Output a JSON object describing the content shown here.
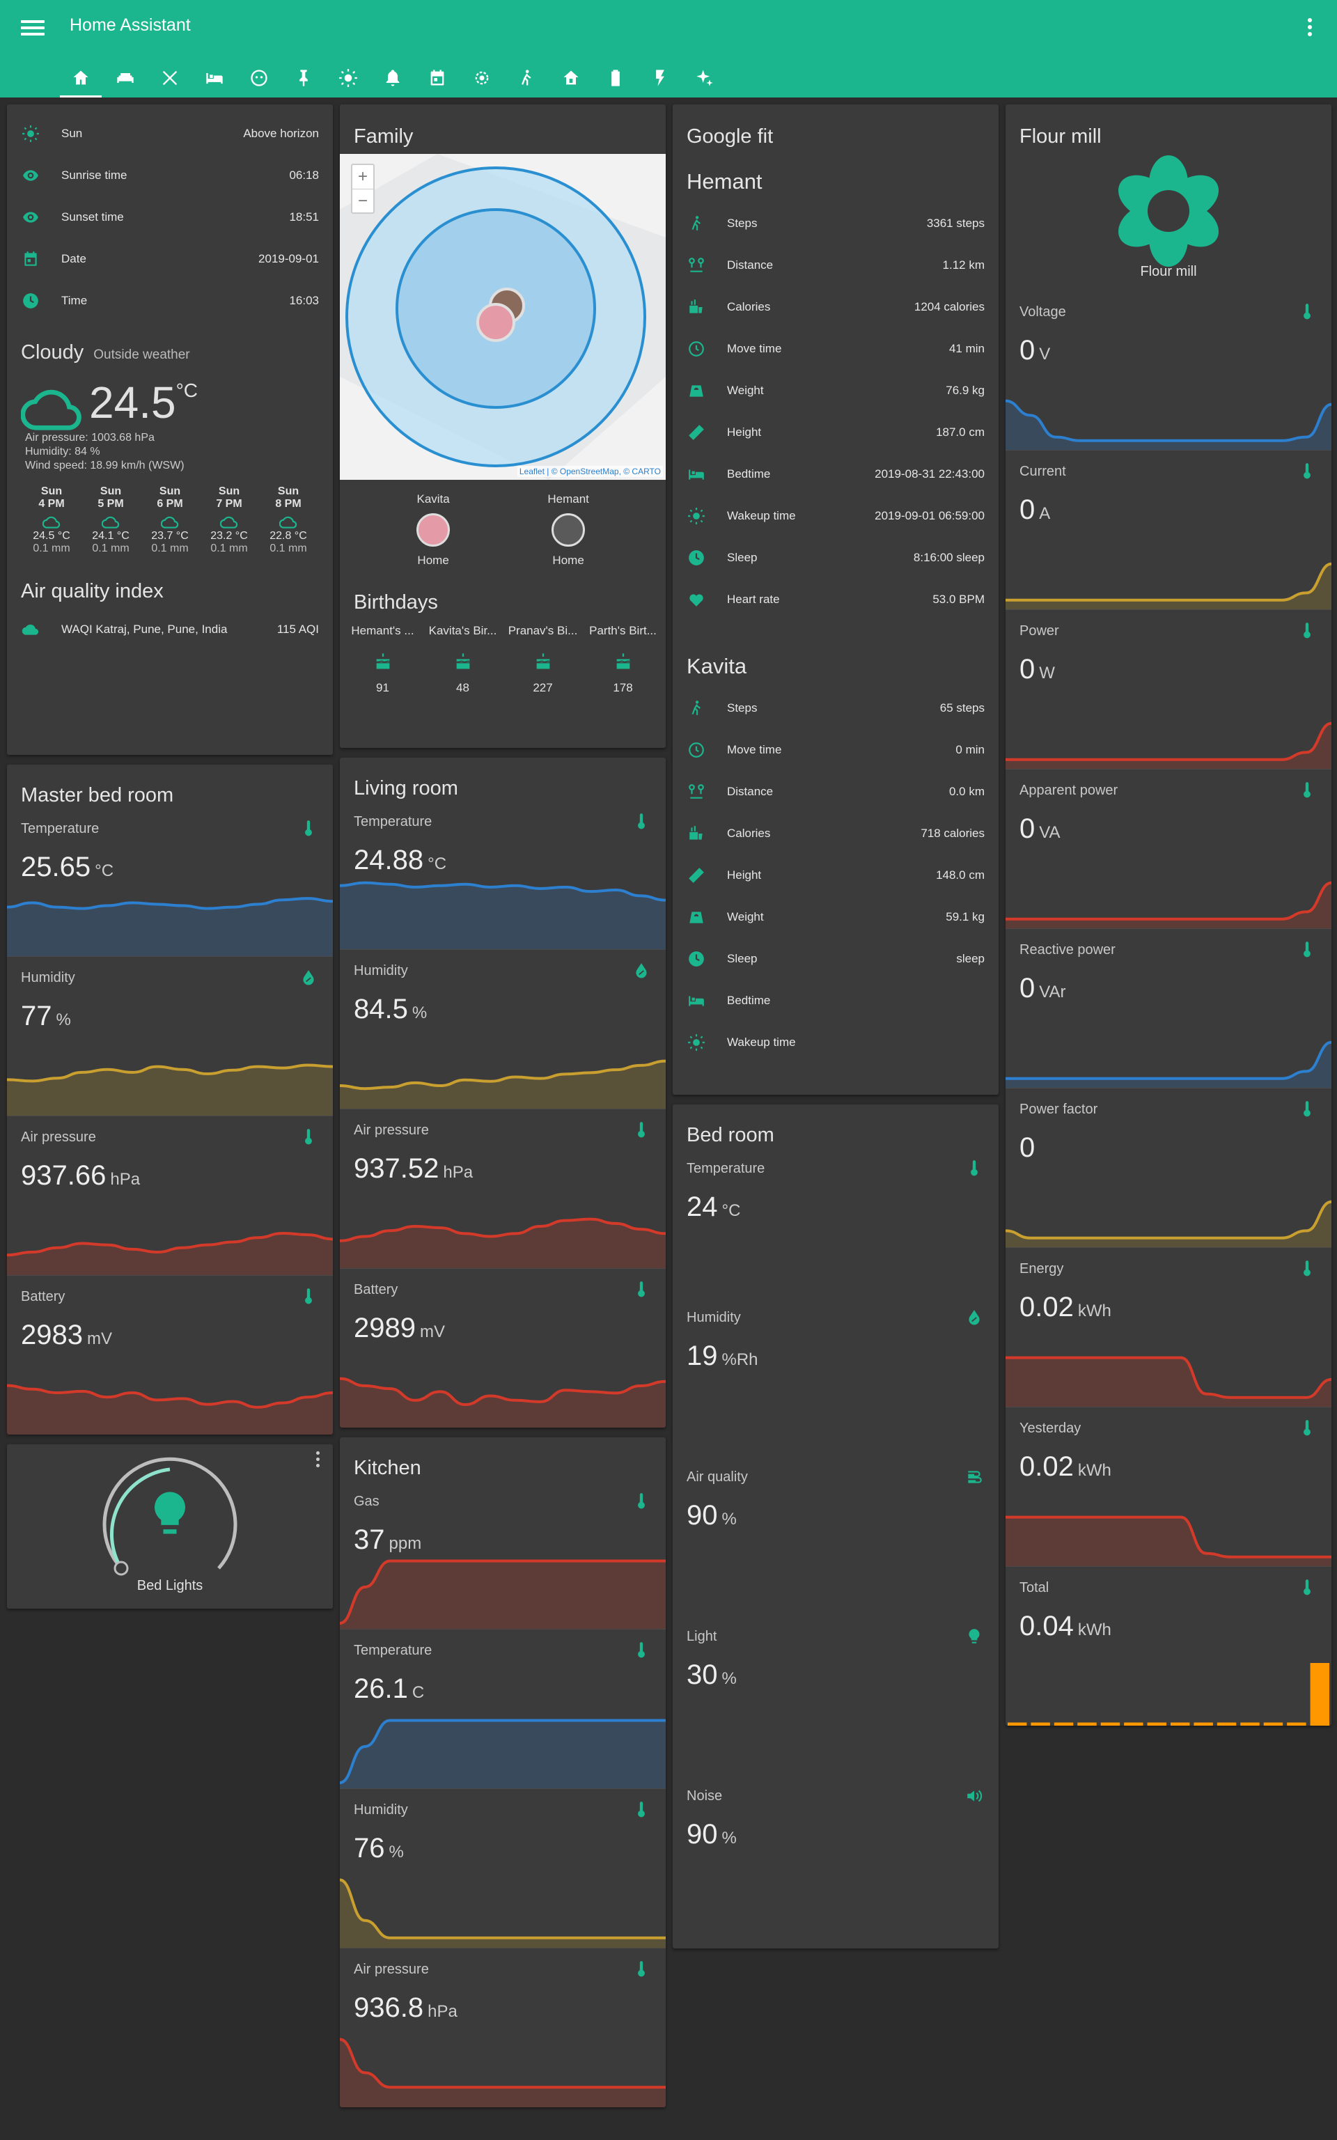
{
  "app": {
    "title": "Home Assistant"
  },
  "colors": {
    "primary": "#1cb68e",
    "card": "#3b3b3b",
    "blue": "#2d7fcf",
    "yellow": "#c9a030",
    "red": "#d43a2a",
    "orange": "#ff9800"
  },
  "tabs": [
    "home-icon",
    "sofa-icon",
    "tools-icon",
    "bed-icon",
    "face-icon",
    "pin-icon",
    "brightness-icon",
    "bell-icon",
    "calendar-icon",
    "gear-icon",
    "walk-icon",
    "house-lock-icon",
    "battery-icon",
    "flash-icon",
    "sparkle-icon"
  ],
  "sun_card": {
    "rows": [
      {
        "icon": "sun-icon",
        "name": "Sun",
        "value": "Above horizon"
      },
      {
        "icon": "eye-icon",
        "name": "Sunrise time",
        "value": "06:18"
      },
      {
        "icon": "eye-icon",
        "name": "Sunset time",
        "value": "18:51"
      },
      {
        "icon": "calendar-icon",
        "name": "Date",
        "value": "2019-09-01"
      },
      {
        "icon": "clock-icon",
        "name": "Time",
        "value": "16:03"
      }
    ]
  },
  "weather": {
    "condition": "Cloudy",
    "name": "Outside weather",
    "temp": "24.5",
    "unit": "°C",
    "pressure": "Air pressure: 1003.68 hPa",
    "humidity": "Humidity: 84 %",
    "wind": "Wind speed: 18.99 km/h (WSW)",
    "forecast": [
      {
        "day": "Sun",
        "time": "4 PM",
        "temp": "24.5 °C",
        "precip": "0.1 mm"
      },
      {
        "day": "Sun",
        "time": "5 PM",
        "temp": "24.1 °C",
        "precip": "0.1 mm"
      },
      {
        "day": "Sun",
        "time": "6 PM",
        "temp": "23.7 °C",
        "precip": "0.1 mm"
      },
      {
        "day": "Sun",
        "time": "7 PM",
        "temp": "23.2 °C",
        "precip": "0.1 mm"
      },
      {
        "day": "Sun",
        "time": "8 PM",
        "temp": "22.8 °C",
        "precip": "0.1 mm"
      }
    ]
  },
  "aqi": {
    "title": "Air quality index",
    "name": "WAQI Katraj, Pune, Pune, India",
    "value": "115 AQI"
  },
  "master_bed": {
    "title": "Master bed room",
    "sensors": [
      {
        "label": "Temperature",
        "value": "25.65",
        "unit": "°C",
        "icon": "thermometer-icon",
        "color": "blue",
        "series": [
          60,
          66,
          60,
          58,
          62,
          66,
          64,
          62,
          58,
          60,
          64,
          70,
          72,
          68
        ]
      },
      {
        "label": "Humidity",
        "value": "77",
        "unit": "%",
        "icon": "water-percent-icon",
        "color": "yellow",
        "series": [
          42,
          40,
          44,
          52,
          56,
          52,
          60,
          56,
          50,
          55,
          60,
          58,
          62,
          60
        ]
      },
      {
        "label": "Air pressure",
        "value": "937.66",
        "unit": "hPa",
        "icon": "thermometer-icon",
        "color": "red",
        "series": [
          20,
          24,
          30,
          36,
          34,
          28,
          24,
          30,
          34,
          38,
          44,
          50,
          48,
          42
        ]
      },
      {
        "label": "Battery",
        "value": "2983",
        "unit": "mV",
        "icon": "thermometer-icon",
        "color": "red",
        "series": [
          60,
          55,
          50,
          52,
          44,
          50,
          40,
          42,
          34,
          38,
          30,
          36,
          44,
          50
        ]
      }
    ]
  },
  "light": {
    "name": "Bed Lights"
  },
  "family": {
    "title": "Family",
    "map_attr": "Leaflet | © OpenStreetMap, © CARTO",
    "people": [
      {
        "name": "Kavita",
        "state": "Home"
      },
      {
        "name": "Hemant",
        "state": "Home"
      }
    ]
  },
  "birthdays": {
    "title": "Birthdays",
    "items": [
      {
        "name": "Hemant's ...",
        "days": "91"
      },
      {
        "name": "Kavita's Bir...",
        "days": "48"
      },
      {
        "name": "Pranav's Bi...",
        "days": "227"
      },
      {
        "name": "Parth's Birt...",
        "days": "178"
      }
    ]
  },
  "living": {
    "title": "Living room",
    "sensors": [
      {
        "label": "Temperature",
        "value": "24.88",
        "unit": "°C",
        "icon": "thermometer-icon",
        "color": "blue",
        "series": [
          80,
          84,
          82,
          78,
          80,
          82,
          78,
          80,
          76,
          78,
          72,
          74,
          66,
          60
        ]
      },
      {
        "label": "Humidity",
        "value": "84.5",
        "unit": "%",
        "icon": "water-percent-icon",
        "color": "yellow",
        "series": [
          24,
          20,
          22,
          28,
          24,
          32,
          30,
          36,
          34,
          40,
          42,
          46,
          52,
          58
        ]
      },
      {
        "label": "Air pressure",
        "value": "937.52",
        "unit": "hPa",
        "icon": "thermometer-icon",
        "color": "red",
        "series": [
          30,
          36,
          44,
          50,
          48,
          40,
          36,
          40,
          50,
          58,
          60,
          54,
          46,
          40
        ]
      },
      {
        "label": "Battery",
        "value": "2989",
        "unit": "mV",
        "icon": "thermometer-icon",
        "color": "red",
        "series": [
          60,
          50,
          46,
          30,
          42,
          24,
          36,
          30,
          28,
          44,
          42,
          40,
          50,
          56
        ]
      }
    ]
  },
  "kitchen": {
    "title": "Kitchen",
    "sensors": [
      {
        "label": "Gas",
        "value": "37",
        "unit": "ppm",
        "icon": "thermometer-icon",
        "color": "red",
        "series": [
          0,
          50,
          86,
          86,
          86,
          86,
          86,
          86,
          86,
          86,
          86,
          86,
          86,
          86
        ]
      },
      {
        "label": "Temperature",
        "value": "26.1",
        "unit": "C",
        "icon": "thermometer-icon",
        "color": "blue",
        "series": [
          0,
          50,
          86,
          86,
          86,
          86,
          86,
          86,
          86,
          86,
          86,
          86,
          86,
          86
        ]
      },
      {
        "label": "Humidity",
        "value": "76",
        "unit": "%",
        "icon": "thermometer-icon",
        "color": "yellow",
        "series": [
          86,
          30,
          6,
          6,
          6,
          6,
          6,
          6,
          6,
          6,
          6,
          6,
          6,
          6
        ]
      },
      {
        "label": "Air pressure",
        "value": "936.8",
        "unit": "hPa",
        "icon": "thermometer-icon",
        "color": "red",
        "series": [
          86,
          40,
          20,
          20,
          20,
          20,
          20,
          20,
          20,
          20,
          20,
          20,
          20,
          20
        ]
      }
    ]
  },
  "gfit": {
    "title": "Google fit",
    "people": [
      {
        "name": "Hemant",
        "rows": [
          {
            "icon": "walk-icon",
            "name": "Steps",
            "value": "3361 steps"
          },
          {
            "icon": "map-marker-distance-icon",
            "name": "Distance",
            "value": "1.12 km"
          },
          {
            "icon": "food-icon",
            "name": "Calories",
            "value": "1204 calories"
          },
          {
            "icon": "clock-outline-icon",
            "name": "Move time",
            "value": "41 min"
          },
          {
            "icon": "scale-icon",
            "name": "Weight",
            "value": "76.9 kg"
          },
          {
            "icon": "ruler-icon",
            "name": "Height",
            "value": "187.0 cm"
          },
          {
            "icon": "bed-icon",
            "name": "Bedtime",
            "value": "2019-08-31 22:43:00"
          },
          {
            "icon": "sun-icon",
            "name": "Wakeup time",
            "value": "2019-09-01 06:59:00"
          },
          {
            "icon": "clock-icon",
            "name": "Sleep",
            "value": "8:16:00 sleep"
          },
          {
            "icon": "heart-icon",
            "name": "Heart rate",
            "value": "53.0 BPM"
          }
        ]
      },
      {
        "name": "Kavita",
        "rows": [
          {
            "icon": "walk-icon",
            "name": "Steps",
            "value": "65 steps"
          },
          {
            "icon": "clock-outline-icon",
            "name": "Move time",
            "value": "0 min"
          },
          {
            "icon": "map-marker-distance-icon",
            "name": "Distance",
            "value": "0.0 km"
          },
          {
            "icon": "food-icon",
            "name": "Calories",
            "value": "718 calories"
          },
          {
            "icon": "ruler-icon",
            "name": "Height",
            "value": "148.0 cm"
          },
          {
            "icon": "scale-icon",
            "name": "Weight",
            "value": "59.1 kg"
          },
          {
            "icon": "clock-icon",
            "name": "Sleep",
            "value": "sleep"
          },
          {
            "icon": "bed-icon",
            "name": "Bedtime",
            "value": ""
          },
          {
            "icon": "sun-icon",
            "name": "Wakeup time",
            "value": ""
          }
        ]
      }
    ]
  },
  "bedroom": {
    "title": "Bed room",
    "sensors": [
      {
        "label": "Temperature",
        "value": "24",
        "unit": "°C",
        "icon": "thermometer-icon"
      },
      {
        "label": "Humidity",
        "value": "19",
        "unit": "%Rh",
        "icon": "water-percent-icon"
      },
      {
        "label": "Air quality",
        "value": "90",
        "unit": "%",
        "icon": "air-filter-icon"
      },
      {
        "label": "Light",
        "value": "30",
        "unit": "%",
        "icon": "lightbulb-icon"
      },
      {
        "label": "Noise",
        "value": "90",
        "unit": "%",
        "icon": "volume-icon"
      }
    ]
  },
  "flourmill": {
    "title": "Flour mill",
    "name": "Flour mill",
    "sensors": [
      {
        "label": "Voltage",
        "value": "0",
        "unit": "V",
        "icon": "thermometer-icon",
        "color": "blue",
        "series": [
          60,
          40,
          10,
          5,
          5,
          5,
          5,
          5,
          5,
          5,
          5,
          5,
          10,
          55
        ]
      },
      {
        "label": "Current",
        "value": "0",
        "unit": "A",
        "icon": "thermometer-icon",
        "color": "yellow",
        "series": [
          5,
          5,
          5,
          5,
          5,
          5,
          5,
          5,
          5,
          5,
          5,
          5,
          15,
          55
        ]
      },
      {
        "label": "Power",
        "value": "0",
        "unit": "W",
        "icon": "thermometer-icon",
        "color": "red",
        "series": [
          5,
          5,
          5,
          5,
          5,
          5,
          5,
          5,
          5,
          5,
          5,
          5,
          15,
          55
        ]
      },
      {
        "label": "Apparent power",
        "value": "0",
        "unit": "VA",
        "icon": "thermometer-icon",
        "color": "red",
        "series": [
          5,
          5,
          5,
          5,
          5,
          5,
          5,
          5,
          5,
          5,
          5,
          5,
          15,
          55
        ]
      },
      {
        "label": "Reactive power",
        "value": "0",
        "unit": "VAr",
        "icon": "thermometer-icon",
        "color": "blue",
        "series": [
          5,
          5,
          5,
          5,
          5,
          5,
          5,
          5,
          5,
          5,
          5,
          5,
          15,
          55
        ]
      },
      {
        "label": "Power factor",
        "value": "0",
        "unit": "",
        "icon": "thermometer-icon",
        "color": "yellow",
        "series": [
          15,
          5,
          5,
          5,
          5,
          5,
          5,
          5,
          5,
          5,
          5,
          5,
          15,
          55
        ]
      },
      {
        "label": "Energy",
        "value": "0.02",
        "unit": "kWh",
        "icon": "thermometer-icon",
        "color": "red",
        "series": [
          60,
          60,
          60,
          60,
          60,
          60,
          60,
          60,
          10,
          5,
          5,
          5,
          5,
          30
        ]
      },
      {
        "label": "Yesterday",
        "value": "0.02",
        "unit": "kWh",
        "icon": "thermometer-icon",
        "color": "red",
        "series": [
          60,
          60,
          60,
          60,
          60,
          60,
          60,
          60,
          10,
          5,
          5,
          5,
          5,
          5
        ]
      },
      {
        "label": "Total",
        "value": "0.04",
        "unit": "kWh",
        "icon": "thermometer-icon",
        "color": "orange",
        "bars": [
          2,
          2,
          2,
          2,
          2,
          2,
          2,
          2,
          2,
          2,
          2,
          2,
          2,
          40
        ]
      }
    ]
  }
}
